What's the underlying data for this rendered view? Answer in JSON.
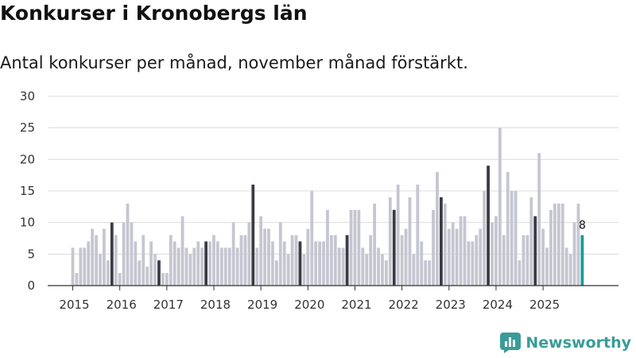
{
  "header": {
    "title": "Konkurser i Kronobergs län",
    "subtitle": "Antal konkurser per månad, november månad förstärkt."
  },
  "brand": {
    "name": "Newsworthy",
    "icon": "newsworthy-logo-icon",
    "color": "#3a9c98"
  },
  "colors": {
    "base": "#c6c6d2",
    "highlight": "#3b3b45",
    "latest": "#1a9a96"
  },
  "chart_data": {
    "type": "bar",
    "title": "Konkurser i Kronobergs län",
    "xlabel": "",
    "ylabel": "",
    "ylim": [
      0,
      30
    ],
    "yticks": [
      0,
      5,
      10,
      15,
      20,
      25,
      30
    ],
    "start": "2015-01",
    "highlight_month": "november",
    "year_labels": [
      "2015",
      "2016",
      "2017",
      "2018",
      "2019",
      "2020",
      "2021",
      "2022",
      "2023",
      "2024",
      "2025"
    ],
    "values": [
      6,
      2,
      6,
      6,
      7,
      9,
      8,
      5,
      9,
      4,
      10,
      8,
      2,
      10,
      13,
      10,
      7,
      4,
      8,
      3,
      7,
      5,
      4,
      2,
      2,
      8,
      7,
      6,
      11,
      6,
      5,
      6,
      7,
      6,
      7,
      7,
      8,
      7,
      6,
      6,
      6,
      10,
      6,
      8,
      8,
      10,
      16,
      6,
      11,
      9,
      9,
      7,
      4,
      10,
      7,
      5,
      8,
      8,
      7,
      5,
      9,
      15,
      7,
      7,
      7,
      12,
      8,
      8,
      6,
      6,
      8,
      12,
      12,
      12,
      6,
      5,
      8,
      13,
      6,
      5,
      4,
      14,
      12,
      16,
      8,
      9,
      14,
      5,
      16,
      7,
      4,
      4,
      12,
      18,
      14,
      13,
      9,
      10,
      9,
      11,
      11,
      7,
      7,
      8,
      9,
      15,
      19,
      10,
      11,
      25,
      8,
      18,
      15,
      15,
      4,
      8,
      8,
      14,
      11,
      21,
      9,
      6,
      12,
      13,
      13,
      13,
      6,
      5,
      10,
      13,
      8
    ],
    "data_labels": [
      {
        "index": 130,
        "text": "8"
      }
    ]
  }
}
